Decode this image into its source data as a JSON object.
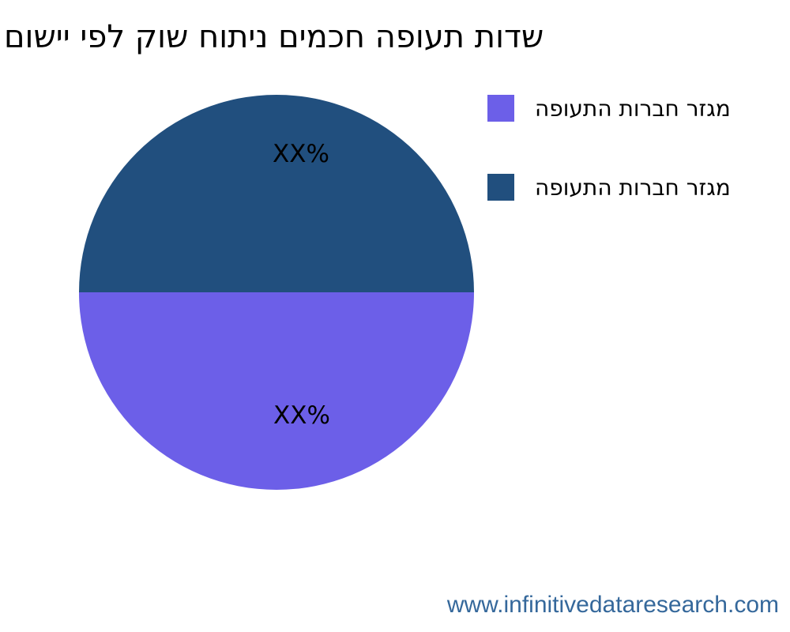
{
  "page": {
    "background": "#ffffff"
  },
  "chart_data": {
    "type": "pie",
    "title": "שדות תעופה חכמים ניתוח שוק לפי יישום",
    "slices": [
      {
        "label": "מגזר חברות התעופה",
        "value": 50,
        "display_pct": "XX%",
        "color": "#6C5FE8",
        "position": "bottom-half"
      },
      {
        "label": "מגזר חברות התעופה",
        "value": 50,
        "display_pct": "XX%",
        "color": "#214F7E",
        "position": "top-half"
      }
    ],
    "start_angle": "first slice starts at east sweeping clockwise through bottom",
    "legend_position": "right",
    "text_direction": "rtl",
    "title_color": "#000000",
    "label_color": "#000000"
  },
  "footer": {
    "website": "www.infinitivedataresearch.com",
    "color": "#35689B"
  }
}
